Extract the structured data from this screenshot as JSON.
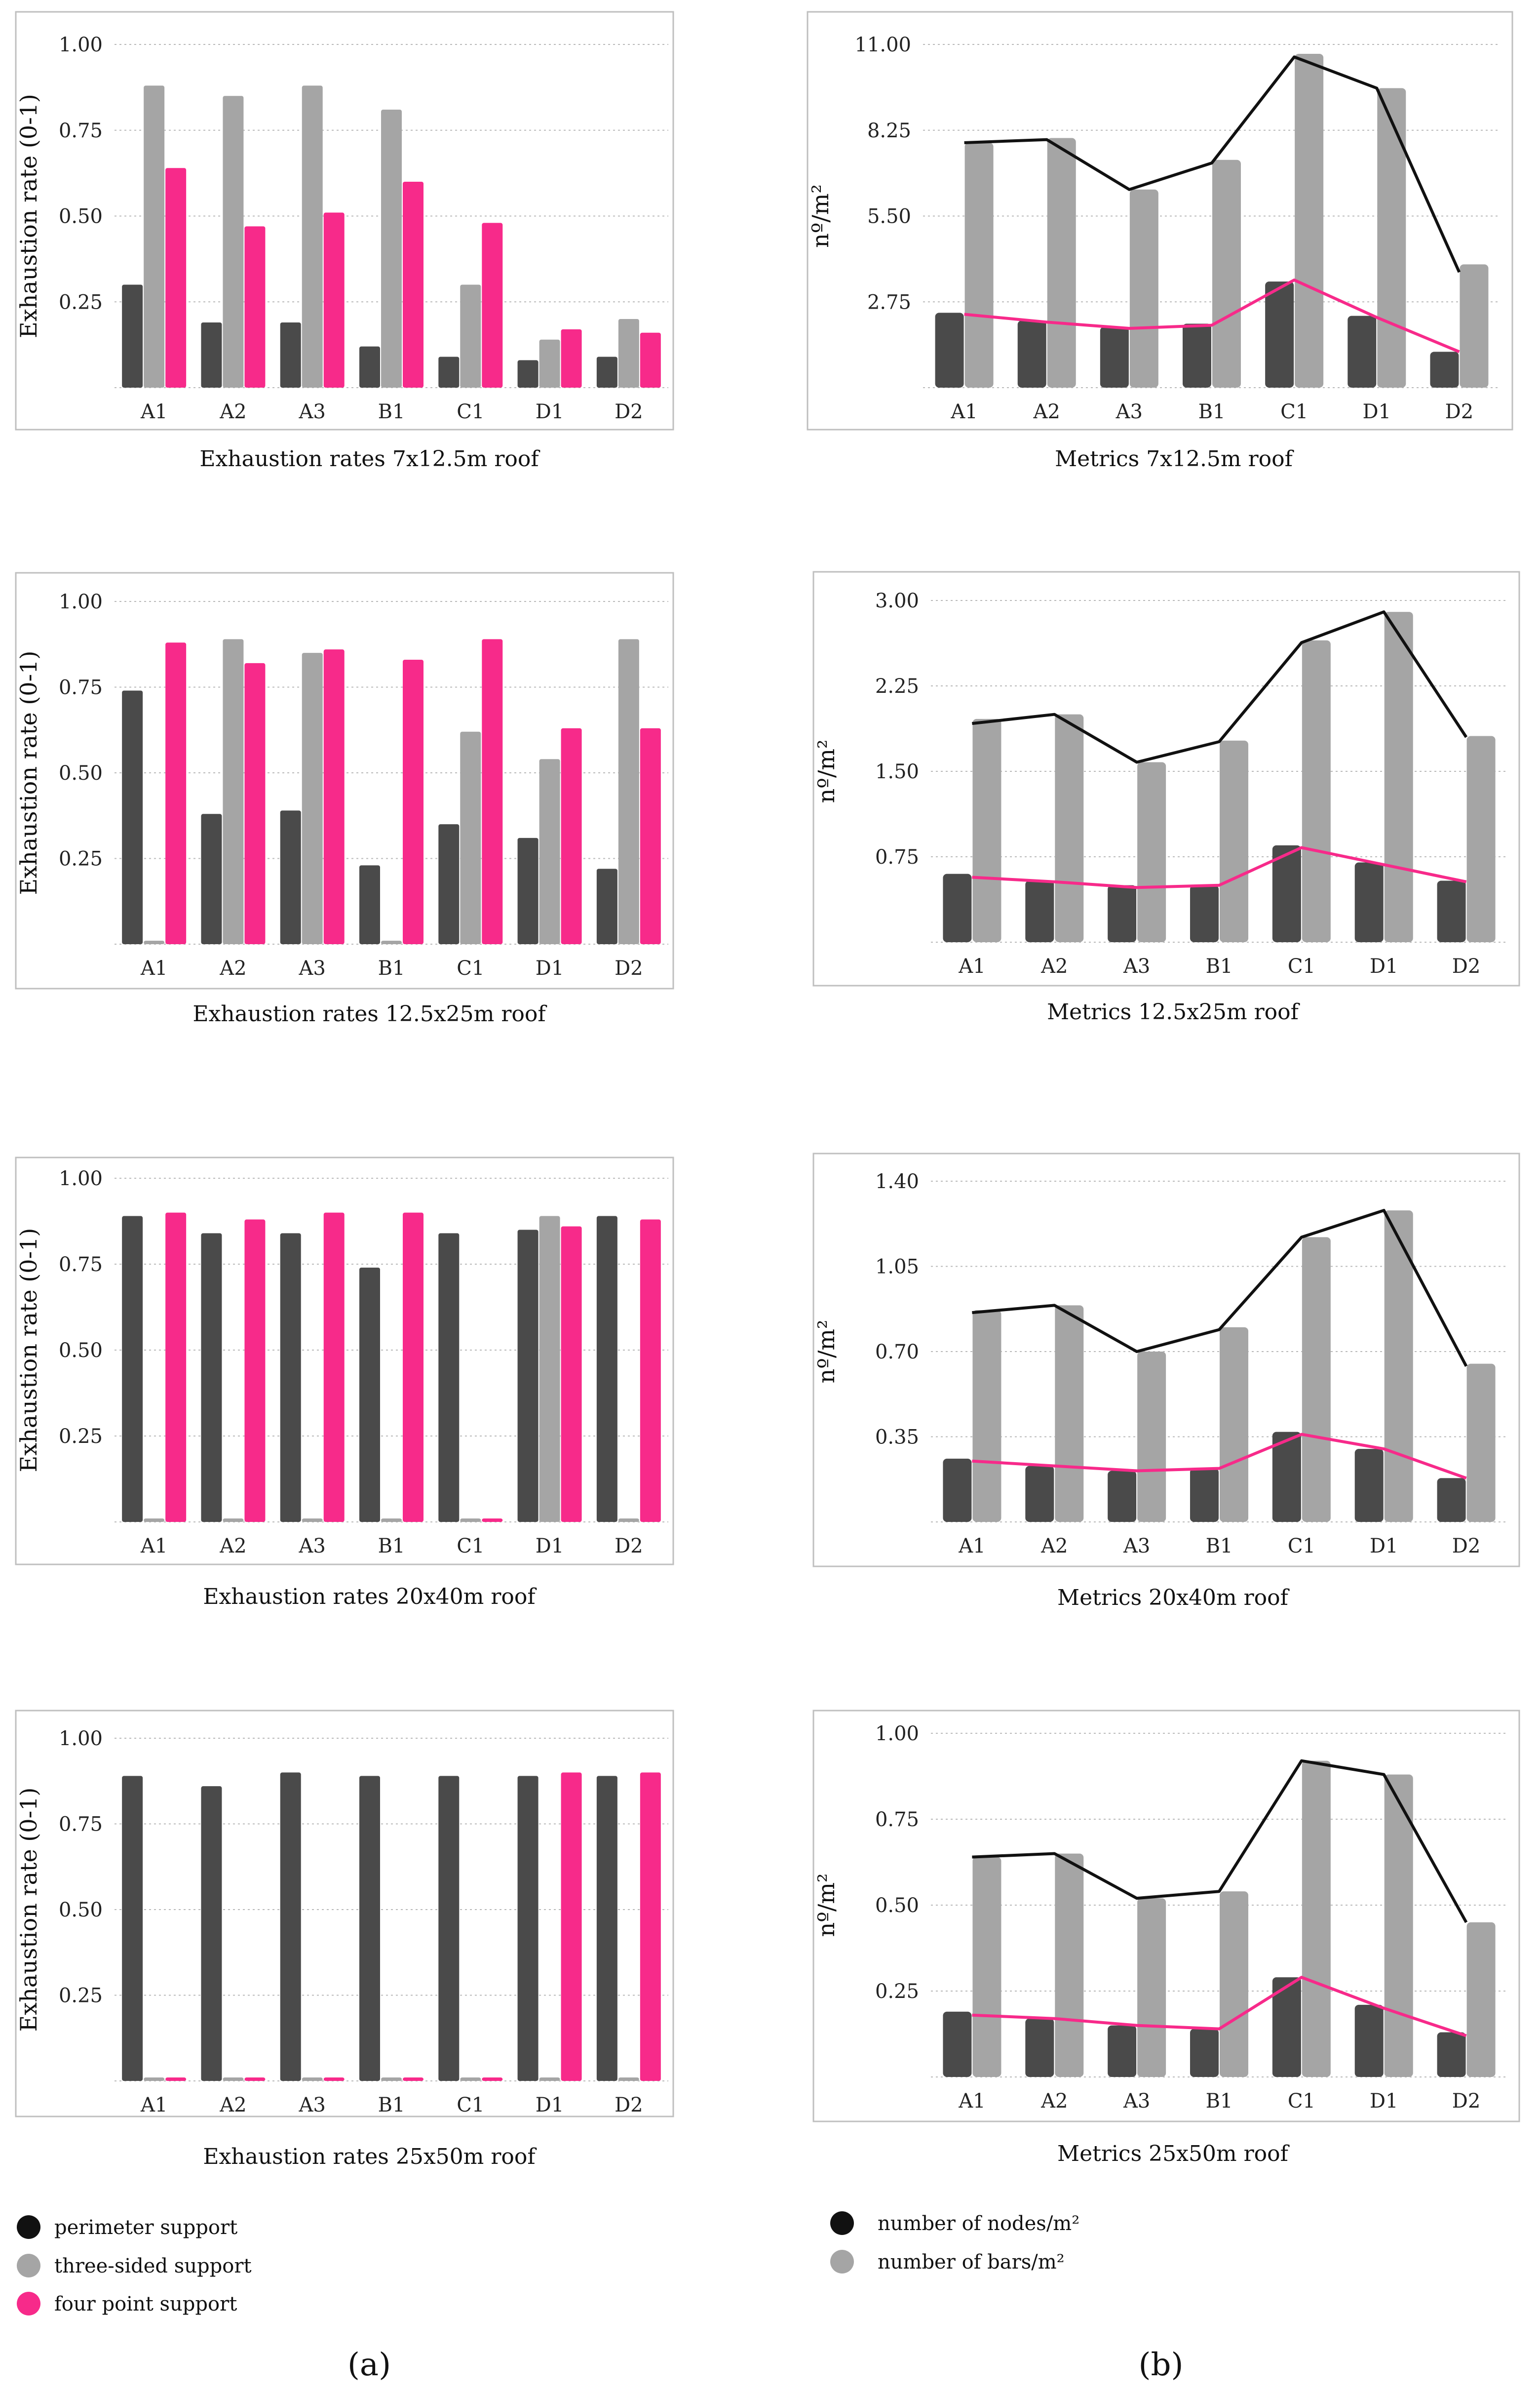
{
  "colors": {
    "perimeter": "#4a4a4a",
    "three_sided": "#a5a5a5",
    "four_point": "#f72a8a",
    "nodes_line": "#111111",
    "bars": "#a5a5a5",
    "grid": "#b9b9b9",
    "frame": "#bfbfbf"
  },
  "legend_a": [
    {
      "label": "perimeter support",
      "color": "#111111"
    },
    {
      "label": "three-sided support",
      "color": "#a5a5a5"
    },
    {
      "label": "four point support",
      "color": "#f72a8a"
    }
  ],
  "legend_b": [
    {
      "label": "number of nodes/m²",
      "color": "#111111"
    },
    {
      "label": "number of bars/m²",
      "color": "#a5a5a5"
    }
  ],
  "panel_labels": {
    "a": "(a)",
    "b": "(b)"
  },
  "chart_data": [
    {
      "id": "a1",
      "type": "bar",
      "title": "Exhaustion rates 7x12.5m roof",
      "ylabel": "Exhaustion rate (0-1)",
      "ylim": [
        0,
        1
      ],
      "yticks": [
        0.25,
        0.5,
        0.75,
        1.0
      ],
      "ytick_labels": [
        "0.25",
        "0.50",
        "0.75",
        "1.00"
      ],
      "categories": [
        "A1",
        "A2",
        "A3",
        "B1",
        "C1",
        "D1",
        "D2"
      ],
      "series": [
        {
          "name": "perimeter support",
          "values": [
            0.3,
            0.19,
            0.19,
            0.12,
            0.09,
            0.08,
            0.09
          ]
        },
        {
          "name": "three-sided support",
          "values": [
            0.88,
            0.85,
            0.88,
            0.81,
            0.3,
            0.14,
            0.2
          ]
        },
        {
          "name": "four point support",
          "values": [
            0.64,
            0.47,
            0.51,
            0.6,
            0.48,
            0.17,
            0.16
          ]
        }
      ]
    },
    {
      "id": "b1",
      "type": "bar+line",
      "title": "Metrics 7x12.5m roof",
      "ylabel": "nº/m²",
      "ylim": [
        0,
        11.0
      ],
      "yticks": [
        2.75,
        5.5,
        8.25,
        11.0
      ],
      "ytick_labels": [
        "2.75",
        "5.50",
        "8.25",
        "11.00"
      ],
      "categories": [
        "A1",
        "A2",
        "A3",
        "B1",
        "C1",
        "D1",
        "D2"
      ],
      "bars": [
        {
          "name": "perimeter",
          "values": [
            2.4,
            2.15,
            1.95,
            2.05,
            3.4,
            2.3,
            1.15
          ]
        },
        {
          "name": "number of bars/m²",
          "values": [
            7.85,
            8.0,
            6.35,
            7.3,
            10.7,
            9.6,
            3.95
          ]
        }
      ],
      "lines": [
        {
          "name": "number of nodes/m²",
          "values": [
            7.85,
            7.95,
            6.35,
            7.2,
            10.6,
            9.6,
            3.7
          ]
        },
        {
          "name": "four point",
          "values": [
            2.35,
            2.1,
            1.9,
            2.0,
            3.45,
            2.25,
            1.15
          ]
        }
      ]
    },
    {
      "id": "a2",
      "type": "bar",
      "title": "Exhaustion rates 12.5x25m roof",
      "ylabel": "Exhaustion rate (0-1)",
      "ylim": [
        0,
        1
      ],
      "yticks": [
        0.25,
        0.5,
        0.75,
        1.0
      ],
      "ytick_labels": [
        "0.25",
        "0.50",
        "0.75",
        "1.00"
      ],
      "categories": [
        "A1",
        "A2",
        "A3",
        "B1",
        "C1",
        "D1",
        "D2"
      ],
      "series": [
        {
          "name": "perimeter support",
          "values": [
            0.74,
            0.38,
            0.39,
            0.23,
            0.35,
            0.31,
            0.22
          ]
        },
        {
          "name": "three-sided support",
          "values": [
            0.01,
            0.89,
            0.85,
            0.01,
            0.62,
            0.54,
            0.89
          ]
        },
        {
          "name": "four point support",
          "values": [
            0.88,
            0.82,
            0.86,
            0.83,
            0.89,
            0.63,
            0.63
          ]
        }
      ]
    },
    {
      "id": "b2",
      "type": "bar+line",
      "title": "Metrics 12.5x25m roof",
      "ylabel": "nº/m²",
      "ylim": [
        0,
        3.0
      ],
      "yticks": [
        0.75,
        1.5,
        2.25,
        3.0
      ],
      "ytick_labels": [
        "0.75",
        "1.50",
        "2.25",
        "3.00"
      ],
      "categories": [
        "A1",
        "A2",
        "A3",
        "B1",
        "C1",
        "D1",
        "D2"
      ],
      "bars": [
        {
          "name": "perimeter",
          "values": [
            0.6,
            0.54,
            0.5,
            0.5,
            0.85,
            0.7,
            0.54
          ]
        },
        {
          "name": "number of bars/m²",
          "values": [
            1.96,
            2.0,
            1.58,
            1.77,
            2.65,
            2.9,
            1.81
          ]
        }
      ],
      "lines": [
        {
          "name": "number of nodes/m²",
          "values": [
            1.92,
            2.0,
            1.58,
            1.76,
            2.63,
            2.9,
            1.8
          ]
        },
        {
          "name": "four point",
          "values": [
            0.57,
            0.53,
            0.48,
            0.5,
            0.83,
            0.68,
            0.53
          ]
        }
      ]
    },
    {
      "id": "a3",
      "type": "bar",
      "title": "Exhaustion rates 20x40m roof",
      "ylabel": "Exhaustion rate (0-1)",
      "ylim": [
        0,
        1
      ],
      "yticks": [
        0.25,
        0.5,
        0.75,
        1.0
      ],
      "ytick_labels": [
        "0.25",
        "0.50",
        "0.75",
        "1.00"
      ],
      "categories": [
        "A1",
        "A2",
        "A3",
        "B1",
        "C1",
        "D1",
        "D2"
      ],
      "series": [
        {
          "name": "perimeter support",
          "values": [
            0.89,
            0.84,
            0.84,
            0.74,
            0.84,
            0.85,
            0.89
          ]
        },
        {
          "name": "three-sided support",
          "values": [
            0.01,
            0.01,
            0.01,
            0.01,
            0.01,
            0.89,
            0.01
          ]
        },
        {
          "name": "four point support",
          "values": [
            0.9,
            0.88,
            0.9,
            0.9,
            0.01,
            0.86,
            0.88
          ]
        }
      ]
    },
    {
      "id": "b3",
      "type": "bar+line",
      "title": "Metrics 20x40m roof",
      "ylabel": "nº/m²",
      "ylim": [
        0,
        1.4
      ],
      "yticks": [
        0.35,
        0.7,
        1.05,
        1.4
      ],
      "ytick_labels": [
        "0.35",
        "0.70",
        "1.05",
        "1.40"
      ],
      "categories": [
        "A1",
        "A2",
        "A3",
        "B1",
        "C1",
        "D1",
        "D2"
      ],
      "bars": [
        {
          "name": "perimeter",
          "values": [
            0.26,
            0.23,
            0.21,
            0.22,
            0.37,
            0.3,
            0.18
          ]
        },
        {
          "name": "number of bars/m²",
          "values": [
            0.87,
            0.89,
            0.7,
            0.8,
            1.17,
            1.28,
            0.65
          ]
        }
      ],
      "lines": [
        {
          "name": "number of nodes/m²",
          "values": [
            0.86,
            0.89,
            0.7,
            0.79,
            1.17,
            1.28,
            0.64
          ]
        },
        {
          "name": "four point",
          "values": [
            0.25,
            0.23,
            0.21,
            0.22,
            0.36,
            0.3,
            0.18
          ]
        }
      ]
    },
    {
      "id": "a4",
      "type": "bar",
      "title": "Exhaustion rates 25x50m roof",
      "ylabel": "Exhaustion rate (0-1)",
      "ylim": [
        0,
        1
      ],
      "yticks": [
        0.25,
        0.5,
        0.75,
        1.0
      ],
      "ytick_labels": [
        "0.25",
        "0.50",
        "0.75",
        "1.00"
      ],
      "categories": [
        "A1",
        "A2",
        "A3",
        "B1",
        "C1",
        "D1",
        "D2"
      ],
      "series": [
        {
          "name": "perimeter support",
          "values": [
            0.89,
            0.86,
            0.9,
            0.89,
            0.89,
            0.89,
            0.89
          ]
        },
        {
          "name": "three-sided support",
          "values": [
            0.01,
            0.01,
            0.01,
            0.01,
            0.01,
            0.01,
            0.01
          ]
        },
        {
          "name": "four point support",
          "values": [
            0.01,
            0.01,
            0.01,
            0.01,
            0.01,
            0.9,
            0.9
          ]
        }
      ]
    },
    {
      "id": "b4",
      "type": "bar+line",
      "title": "Metrics 25x50m roof",
      "ylabel": "nº/m²",
      "ylim": [
        0,
        1.0
      ],
      "yticks": [
        0.25,
        0.5,
        0.75,
        1.0
      ],
      "ytick_labels": [
        "0.25",
        "0.50",
        "0.75",
        "1.00"
      ],
      "categories": [
        "A1",
        "A2",
        "A3",
        "B1",
        "C1",
        "D1",
        "D2"
      ],
      "bars": [
        {
          "name": "perimeter",
          "values": [
            0.19,
            0.17,
            0.15,
            0.14,
            0.29,
            0.21,
            0.13
          ]
        },
        {
          "name": "number of bars/m²",
          "values": [
            0.64,
            0.65,
            0.52,
            0.54,
            0.92,
            0.88,
            0.45
          ]
        }
      ],
      "lines": [
        {
          "name": "number of nodes/m²",
          "values": [
            0.64,
            0.65,
            0.52,
            0.54,
            0.92,
            0.88,
            0.45
          ]
        },
        {
          "name": "four point",
          "values": [
            0.18,
            0.17,
            0.15,
            0.14,
            0.29,
            0.2,
            0.12
          ]
        }
      ]
    }
  ]
}
